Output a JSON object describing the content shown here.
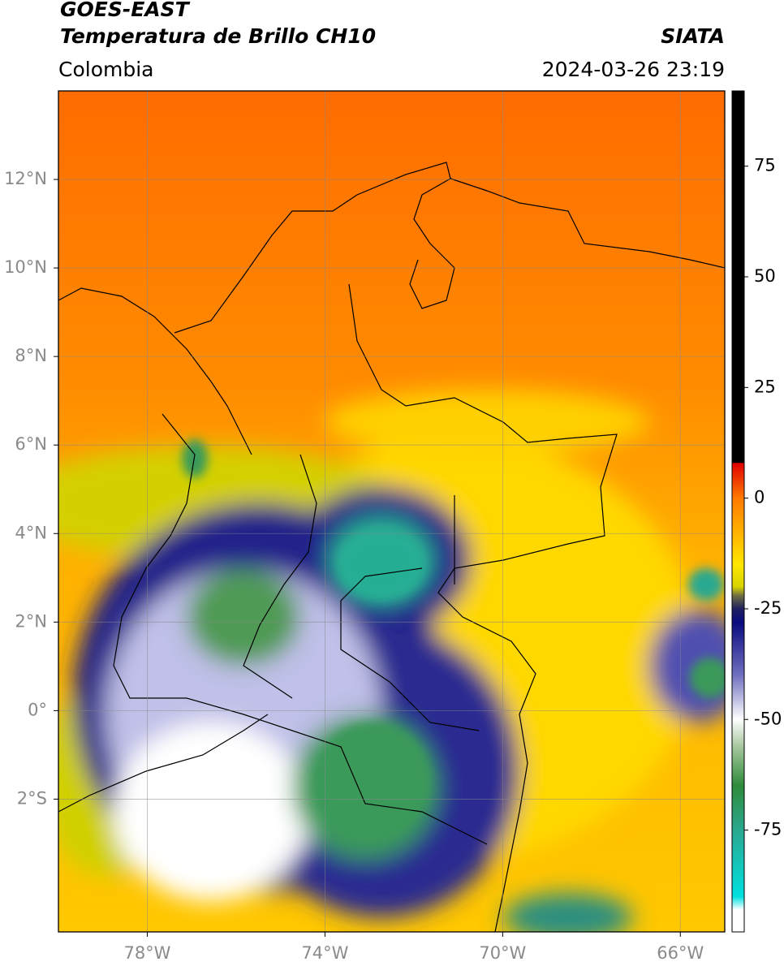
{
  "header": {
    "title": "GOES-EAST",
    "subtitle": "Temperatura de Brillo CH10",
    "source": "SIATA",
    "region": "Colombia",
    "datetime": "2024-03-26 23:19"
  },
  "map": {
    "type": "map",
    "xlim": [
      -80,
      -65
    ],
    "ylim": [
      -5,
      14
    ],
    "xticks": [
      {
        "value": -78,
        "label": "78°W"
      },
      {
        "value": -74,
        "label": "74°W"
      },
      {
        "value": -70,
        "label": "70°W"
      },
      {
        "value": -66,
        "label": "66°W"
      }
    ],
    "yticks": [
      {
        "value": 12,
        "label": "12°N"
      },
      {
        "value": 10,
        "label": "10°N"
      },
      {
        "value": 8,
        "label": "8°N"
      },
      {
        "value": 6,
        "label": "6°N"
      },
      {
        "value": 4,
        "label": "4°N"
      },
      {
        "value": 2,
        "label": "2°N"
      },
      {
        "value": 0,
        "label": "0°"
      },
      {
        "value": -2,
        "label": "2°S"
      }
    ],
    "grid": true
  },
  "colorbar": {
    "clim": [
      -98,
      92
    ],
    "ticks": [
      75,
      50,
      25,
      0,
      -25,
      -50,
      -75
    ],
    "colormap": [
      {
        "value": 92,
        "color": "#000000"
      },
      {
        "value": 8,
        "color": "#000000"
      },
      {
        "value": 7.9,
        "color": "#e00000"
      },
      {
        "value": 0,
        "color": "#ff7a00"
      },
      {
        "value": -15,
        "color": "#ffe600"
      },
      {
        "value": -20,
        "color": "#d8d400"
      },
      {
        "value": -22,
        "color": "#707040"
      },
      {
        "value": -25,
        "color": "#202060"
      },
      {
        "value": -28,
        "color": "#0a0a80"
      },
      {
        "value": -40,
        "color": "#7070c0"
      },
      {
        "value": -50,
        "color": "#ffffff"
      },
      {
        "value": -56,
        "color": "#a8c8a0"
      },
      {
        "value": -65,
        "color": "#2e8b3a"
      },
      {
        "value": -75,
        "color": "#2aa890"
      },
      {
        "value": -90,
        "color": "#00e0e0"
      },
      {
        "value": -93,
        "color": "#ffffff"
      },
      {
        "value": -98,
        "color": "#ffffff"
      }
    ]
  }
}
